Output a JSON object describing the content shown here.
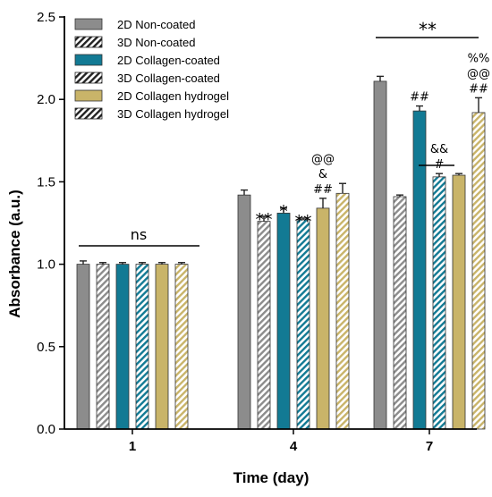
{
  "chart_data": {
    "type": "bar",
    "xlabel": "Time (day)",
    "ylabel": "Absorbance (a.u.)",
    "ylim": [
      0,
      2.5
    ],
    "yticks": [
      "0.0",
      "0.5",
      "1.0",
      "1.5",
      "2.0",
      "2.5"
    ],
    "categories": [
      "1",
      "4",
      "7"
    ],
    "legend_position": "top-left",
    "series": [
      {
        "name": "2D Non-coated",
        "color": "#8c8c8c",
        "pattern": "solid",
        "values": [
          1.0,
          1.42,
          2.11
        ],
        "errors": [
          0.02,
          0.03,
          0.03
        ]
      },
      {
        "name": "3D Non-coated",
        "color": "#8c8c8c",
        "pattern": "hatched",
        "values": [
          1.0,
          1.26,
          1.41
        ],
        "errors": [
          0.01,
          0.03,
          0.01
        ]
      },
      {
        "name": "2D Collagen-coated",
        "color": "#127a94",
        "pattern": "solid",
        "values": [
          1.0,
          1.31,
          1.93
        ],
        "errors": [
          0.01,
          0.03,
          0.03
        ]
      },
      {
        "name": "3D Collagen-coated",
        "color": "#127a94",
        "pattern": "hatched",
        "values": [
          1.0,
          1.27,
          1.53
        ],
        "errors": [
          0.01,
          0.01,
          0.02
        ]
      },
      {
        "name": "2D Collagen hydrogel",
        "color": "#c9b469",
        "pattern": "solid",
        "values": [
          1.0,
          1.34,
          1.54
        ],
        "errors": [
          0.01,
          0.06,
          0.01
        ]
      },
      {
        "name": "3D Collagen hydrogel",
        "color": "#c9b469",
        "pattern": "hatched",
        "values": [
          1.0,
          1.43,
          1.92
        ],
        "errors": [
          0.01,
          0.06,
          0.09
        ]
      }
    ],
    "annotations": {
      "ns": "ns",
      "day4": [
        {
          "series": 1,
          "lines": [
            "**"
          ],
          "size": "big"
        },
        {
          "series": 2,
          "lines": [
            "*"
          ],
          "size": "big"
        },
        {
          "series": 3,
          "lines": [
            "**"
          ],
          "size": "big"
        },
        {
          "series": 4,
          "lines": [
            "@@",
            "&",
            "##"
          ],
          "size": "small"
        }
      ],
      "day7": [
        {
          "series": 2,
          "lines": [
            "##"
          ],
          "size": "small"
        },
        {
          "series": 3,
          "lines": [
            "&&",
            "#"
          ],
          "size": "small"
        },
        {
          "series": 5,
          "lines": [
            "%%",
            "@@",
            "##"
          ],
          "size": "small"
        }
      ],
      "top_bracket": "**"
    }
  }
}
